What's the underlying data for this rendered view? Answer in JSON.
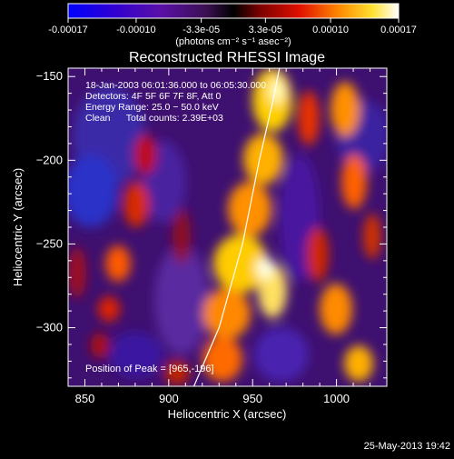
{
  "colorbar": {
    "tick_labels": [
      "-0.00017",
      "-0.00010",
      "-3.3e-05",
      "3.3e-05",
      "0.00010",
      "0.00017"
    ],
    "tick_values": [
      -0.00017,
      -0.0001,
      -3.3e-05,
      3.3e-05,
      0.0001,
      0.00017
    ],
    "range": [
      -0.00017,
      0.00017
    ],
    "units_label": "(photons cm⁻² s⁻¹ asec⁻²)",
    "colors": [
      "#0000ff",
      "#4b00b4",
      "#6a1a9a",
      "#000000",
      "#b00000",
      "#ff2a00",
      "#ff9900",
      "#ffee33",
      "#ffffff"
    ]
  },
  "chart_data": {
    "type": "heatmap",
    "title": "Reconstructed RHESSI Image",
    "xlabel": "Heliocentric X (arcsec)",
    "ylabel": "Heliocentric Y (arcsec)",
    "xlim": [
      840,
      1030
    ],
    "ylim": [
      -335,
      -145
    ],
    "x_ticks": [
      850,
      900,
      950,
      1000
    ],
    "y_ticks": [
      -150,
      -200,
      -250,
      -300
    ],
    "x_tick_labels": [
      "850",
      "900",
      "950",
      "1000"
    ],
    "y_tick_labels": [
      "−150",
      "−200",
      "−250",
      "−300"
    ],
    "limb_curve": [
      [
        915,
        -335
      ],
      [
        930,
        -300
      ],
      [
        944,
        -250
      ],
      [
        954,
        -200
      ],
      [
        962,
        -165
      ],
      [
        966,
        -145
      ]
    ],
    "annotations": [
      "18-Jan-2003 06:01:36.000 to 06:05:30.000",
      "Detectors: 4F 5F 6F 7F 8F, Att 0",
      "Energy Range: 25.0 − 50.0 keV",
      "Clean      Total counts: 2.39E+03"
    ],
    "peak_label": "Position of Peak = [965,-196]"
  },
  "footer": {
    "timestamp": "25-May-2013 19:42"
  }
}
